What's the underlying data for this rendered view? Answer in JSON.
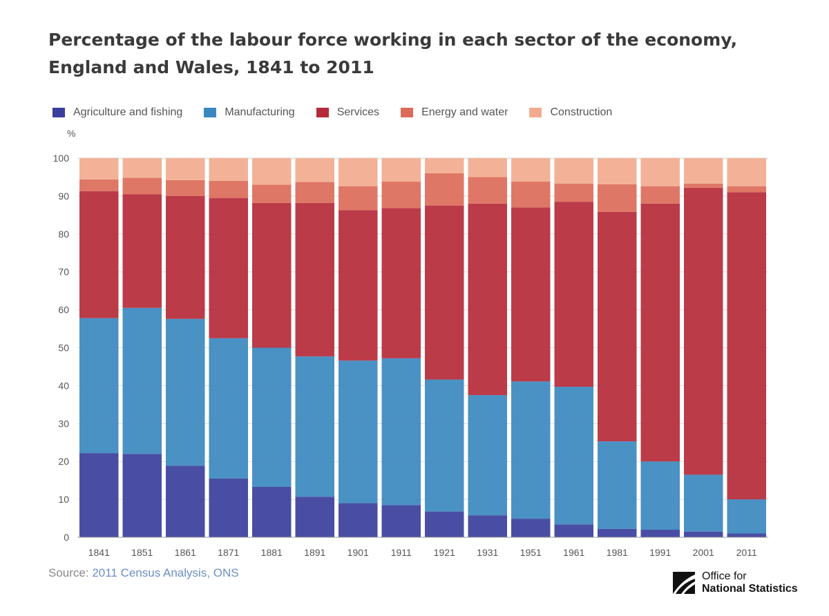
{
  "chart_data": {
    "type": "bar",
    "stacked": true,
    "title": "Percentage of the labour force working in each sector of the economy, England and Wales, 1841 to 2011",
    "ylabel": "%",
    "xlabel": "",
    "ylim": [
      0,
      100
    ],
    "yticks": [
      0,
      10,
      20,
      30,
      40,
      50,
      60,
      70,
      80,
      90,
      100
    ],
    "grid": true,
    "legend_position": "top",
    "categories": [
      "1841",
      "1851",
      "1861",
      "1871",
      "1881",
      "1891",
      "1901",
      "1911",
      "1921",
      "1931",
      "1951",
      "1961",
      "1981",
      "1991",
      "2001",
      "2011"
    ],
    "series": [
      {
        "name": "Agriculture and fishing",
        "color": "#3a3f9c",
        "values": [
          22.2,
          22.0,
          18.9,
          15.5,
          13.3,
          10.7,
          9.0,
          8.5,
          6.8,
          5.8,
          4.9,
          3.4,
          2.2,
          2.0,
          1.5,
          1.0
        ]
      },
      {
        "name": "Manufacturing",
        "color": "#3b88bf",
        "values": [
          35.6,
          38.5,
          38.7,
          37.0,
          36.7,
          37.0,
          37.6,
          38.7,
          34.8,
          31.7,
          36.2,
          36.3,
          23.1,
          18.0,
          15.0,
          9.0
        ]
      },
      {
        "name": "Services",
        "color": "#b52a3a",
        "values": [
          33.5,
          30.0,
          32.4,
          37.0,
          38.2,
          40.5,
          39.7,
          39.6,
          45.9,
          50.5,
          45.9,
          48.8,
          60.5,
          68.0,
          75.7,
          81.0
        ]
      },
      {
        "name": "Energy and water",
        "color": "#dc6b59",
        "values": [
          3.1,
          4.3,
          4.2,
          4.5,
          4.8,
          5.5,
          6.3,
          7.0,
          8.5,
          7.0,
          6.8,
          4.8,
          7.3,
          4.6,
          1.1,
          1.6
        ]
      },
      {
        "name": "Construction",
        "color": "#f2ab8f",
        "values": [
          5.6,
          5.2,
          5.8,
          6.0,
          7.0,
          6.3,
          7.4,
          6.2,
          4.0,
          5.0,
          6.2,
          6.7,
          6.9,
          7.4,
          6.7,
          7.4
        ]
      }
    ]
  },
  "source": {
    "prefix": "Source: ",
    "link_text": "2011 Census Analysis, ONS"
  },
  "logo": {
    "line1": "Office for",
    "line2": "National Statistics"
  }
}
